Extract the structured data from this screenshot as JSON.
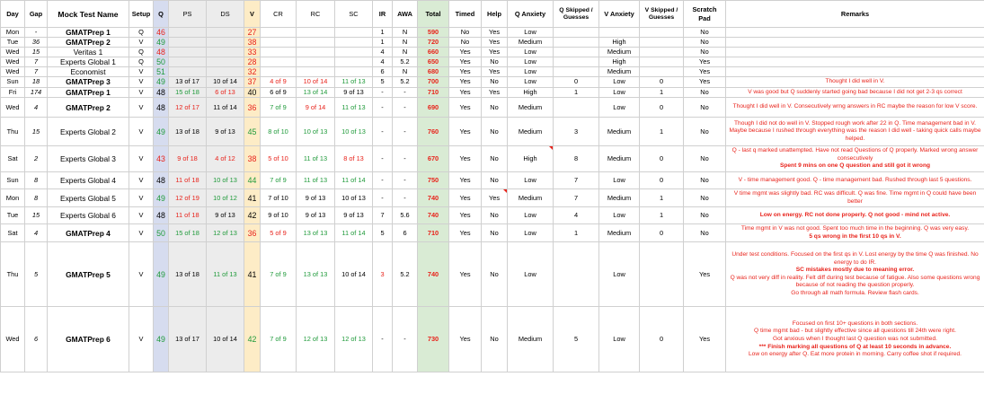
{
  "headers": {
    "day": "Day",
    "gap": "Gap",
    "name": "Mock Test Name",
    "setup": "Setup",
    "q": "Q",
    "ps": "PS",
    "ds": "DS",
    "v": "V",
    "cr": "CR",
    "rc": "RC",
    "sc": "SC",
    "ir": "IR",
    "awa": "AWA",
    "total": "Total",
    "timed": "Timed",
    "help": "Help",
    "q_anxiety": "Q Anxiety",
    "q_skipped": "Q Skipped / Guesses",
    "v_anxiety": "V Anxiety",
    "v_skipped": "V Skipped / Guesses",
    "scratch": "Scratch Pad",
    "remarks": "Remarks"
  },
  "colors": {
    "red": "#e8231b",
    "green": "#1f9a3a",
    "q_band": "#d6dcef",
    "v_band": "#fdecc6",
    "total_band": "#d9ebd4"
  },
  "rows": [
    {
      "day": "Mon",
      "gap": "-",
      "name": "GMATPrep 1",
      "name_bold": true,
      "setup": "Q",
      "q": "46",
      "q_c": "red",
      "ps": "",
      "ps_c": "blk",
      "ds": "",
      "ds_c": "blk",
      "v": "27",
      "v_c": "red",
      "cr": "",
      "cr_c": "blk",
      "rc": "",
      "rc_c": "blk",
      "sc": "",
      "sc_c": "blk",
      "ir": "1",
      "ir_c": "blk",
      "awa": "N",
      "total": "590",
      "timed": "No",
      "help": "Yes",
      "qanx": "Low",
      "qskip": "",
      "vanx": "",
      "vskip": "",
      "scratch": "No",
      "remarks": []
    },
    {
      "day": "Tue",
      "gap": "36",
      "name": "GMATPrep 2",
      "name_bold": true,
      "setup": "V",
      "q": "49",
      "q_c": "green",
      "ps": "",
      "ps_c": "blk",
      "ds": "",
      "ds_c": "blk",
      "v": "38",
      "v_c": "red",
      "cr": "",
      "cr_c": "blk",
      "rc": "",
      "rc_c": "blk",
      "sc": "",
      "sc_c": "blk",
      "ir": "1",
      "ir_c": "blk",
      "awa": "N",
      "total": "720",
      "timed": "No",
      "help": "Yes",
      "qanx": "Medium",
      "qskip": "",
      "vanx": "High",
      "vskip": "",
      "scratch": "No",
      "remarks": []
    },
    {
      "day": "Wed",
      "gap": "15",
      "name": "Veritas 1",
      "name_bold": false,
      "setup": "Q",
      "q": "48",
      "q_c": "red",
      "ps": "",
      "ps_c": "blk",
      "ds": "",
      "ds_c": "blk",
      "v": "33",
      "v_c": "red",
      "cr": "",
      "cr_c": "blk",
      "rc": "",
      "rc_c": "blk",
      "sc": "",
      "sc_c": "blk",
      "ir": "4",
      "ir_c": "blk",
      "awa": "N",
      "total": "660",
      "timed": "Yes",
      "help": "Yes",
      "qanx": "Low",
      "qskip": "",
      "vanx": "Medium",
      "vskip": "",
      "scratch": "No",
      "remarks": []
    },
    {
      "day": "Wed",
      "gap": "7",
      "name": "Experts Global 1",
      "name_bold": false,
      "setup": "Q",
      "q": "50",
      "q_c": "green",
      "ps": "",
      "ps_c": "blk",
      "ds": "",
      "ds_c": "blk",
      "v": "28",
      "v_c": "red",
      "cr": "",
      "cr_c": "blk",
      "rc": "",
      "rc_c": "blk",
      "sc": "",
      "sc_c": "blk",
      "ir": "4",
      "ir_c": "blk",
      "awa": "5.2",
      "total": "650",
      "timed": "Yes",
      "help": "No",
      "qanx": "Low",
      "qskip": "",
      "vanx": "High",
      "vskip": "",
      "scratch": "Yes",
      "remarks": []
    },
    {
      "day": "Wed",
      "gap": "7",
      "name": "Economist",
      "name_bold": false,
      "setup": "V",
      "q": "51",
      "q_c": "green",
      "ps": "",
      "ps_c": "blk",
      "ds": "",
      "ds_c": "blk",
      "v": "32",
      "v_c": "red",
      "cr": "",
      "cr_c": "blk",
      "rc": "",
      "rc_c": "blk",
      "sc": "",
      "sc_c": "blk",
      "ir": "6",
      "ir_c": "blk",
      "awa": "N",
      "total": "680",
      "timed": "Yes",
      "help": "Yes",
      "qanx": "Low",
      "qskip": "",
      "vanx": "Medium",
      "vskip": "",
      "scratch": "Yes",
      "remarks": []
    },
    {
      "day": "Sun",
      "gap": "18",
      "name": "GMATPrep 3",
      "name_bold": true,
      "setup": "V",
      "q": "49",
      "q_c": "green",
      "ps": "13 of 17",
      "ps_c": "blk",
      "ds": "10 of 14",
      "ds_c": "blk",
      "v": "37",
      "v_c": "red",
      "cr": "4 of 9",
      "cr_c": "red",
      "rc": "10 of 14",
      "rc_c": "red",
      "sc": "11 of 13",
      "sc_c": "green",
      "ir": "5",
      "ir_c": "blk",
      "awa": "5.2",
      "total": "700",
      "timed": "Yes",
      "help": "No",
      "qanx": "Low",
      "qskip": "0",
      "vanx": "Low",
      "vskip": "0",
      "scratch": "Yes",
      "remarks": [
        {
          "t": "Thought I did well in V.",
          "b": false
        }
      ]
    },
    {
      "day": "Fri",
      "gap": "174",
      "name": "GMATPrep 1",
      "name_bold": true,
      "setup": "V",
      "q": "48",
      "q_c": "blk",
      "ps": "15 of 18",
      "ps_c": "green",
      "ds": "6 of 13",
      "ds_c": "red",
      "v": "40",
      "v_c": "blk",
      "cr": "6 of 9",
      "cr_c": "blk",
      "rc": "13 of 14",
      "rc_c": "green",
      "sc": "9 of 13",
      "sc_c": "blk",
      "ir": "-",
      "ir_c": "blk",
      "awa": "-",
      "total": "710",
      "timed": "Yes",
      "help": "Yes",
      "qanx": "High",
      "qskip": "1",
      "vanx": "Low",
      "vskip": "1",
      "scratch": "No",
      "remarks": [
        {
          "t": "V was good but Q suddenly started going bad because I did not get 2-3 qs correct",
          "b": false
        }
      ]
    },
    {
      "day": "Wed",
      "gap": "4",
      "name": "GMATPrep 2",
      "name_bold": true,
      "setup": "V",
      "q": "48",
      "q_c": "blk",
      "ps": "12 of 17",
      "ps_c": "red",
      "ds": "11 of 14",
      "ds_c": "blk",
      "v": "36",
      "v_c": "red",
      "cr": "7 of 9",
      "cr_c": "green",
      "rc": "9 of 14",
      "rc_c": "red",
      "sc": "11 of 13",
      "sc_c": "green",
      "ir": "-",
      "ir_c": "blk",
      "awa": "-",
      "total": "690",
      "timed": "Yes",
      "help": "No",
      "qanx": "Medium",
      "qskip": "",
      "vanx": "Low",
      "vskip": "0",
      "scratch": "No",
      "remarks": [
        {
          "t": "Thought I did well in V. Consecutively wrng answers in RC maybe the reason for low V score.",
          "b": false
        }
      ]
    },
    {
      "day": "Thu",
      "gap": "15",
      "name": "Experts Global 2",
      "name_bold": false,
      "setup": "V",
      "q": "49",
      "q_c": "green",
      "ps": "13 of 18",
      "ps_c": "blk",
      "ds": "9 of 13",
      "ds_c": "blk",
      "v": "45",
      "v_c": "green",
      "cr": "8 of 10",
      "cr_c": "green",
      "rc": "10 of 13",
      "rc_c": "green",
      "sc": "10 of 13",
      "sc_c": "green",
      "ir": "-",
      "ir_c": "blk",
      "awa": "-",
      "total": "760",
      "timed": "Yes",
      "help": "No",
      "qanx": "Medium",
      "qskip": "3",
      "vanx": "Medium",
      "vskip": "1",
      "scratch": "No",
      "remarks": [
        {
          "t": "Though I did not do well in V. Stopped rough work after 22 in Q. Time management bad in V. Maybe because I rushed through everything was the reason I did well - taking quick calls maybe helped.",
          "b": false
        }
      ]
    },
    {
      "day": "Sat",
      "gap": "2",
      "name": "Experts Global 3",
      "name_bold": false,
      "setup": "V",
      "q": "43",
      "q_c": "red",
      "ps": "9 of 18",
      "ps_c": "red",
      "ds": "4 of 12",
      "ds_c": "red",
      "v": "38",
      "v_c": "red",
      "cr": "5 of 10",
      "cr_c": "red",
      "rc": "11 of 13",
      "rc_c": "green",
      "sc": "8 of 13",
      "sc_c": "red",
      "ir": "-",
      "ir_c": "blk",
      "awa": "-",
      "total": "670",
      "timed": "Yes",
      "help": "No",
      "qanx": "High",
      "qskip": "8",
      "vanx": "Medium",
      "vskip": "0",
      "scratch": "No",
      "remarks": [
        {
          "t": "Q - last q marked unattempted. Have not read Questions of Q properly. Marked wrong answer consecutively",
          "b": false
        },
        {
          "t": "Spent 9 mins on one Q question and still got it wrong",
          "b": true
        }
      ]
    },
    {
      "day": "Sun",
      "gap": "8",
      "name": "Experts Global 4",
      "name_bold": false,
      "setup": "V",
      "q": "48",
      "q_c": "blk",
      "ps": "11 of 18",
      "ps_c": "red",
      "ds": "10 of 13",
      "ds_c": "green",
      "v": "44",
      "v_c": "green",
      "cr": "7 of 9",
      "cr_c": "green",
      "rc": "11 of 13",
      "rc_c": "green",
      "sc": "11 of 14",
      "sc_c": "green",
      "ir": "-",
      "ir_c": "blk",
      "awa": "-",
      "total": "750",
      "timed": "Yes",
      "help": "No",
      "qanx": "Low",
      "qskip": "7",
      "vanx": "Low",
      "vskip": "0",
      "scratch": "No",
      "remarks": [
        {
          "t": "V - time management good. Q - time management bad. Rushed through last 5 questions.",
          "b": false
        }
      ]
    },
    {
      "day": "Mon",
      "gap": "8",
      "name": "Experts Global 5",
      "name_bold": false,
      "setup": "V",
      "q": "49",
      "q_c": "green",
      "ps": "12 of 19",
      "ps_c": "red",
      "ds": "10 of 12",
      "ds_c": "green",
      "v": "41",
      "v_c": "blk",
      "cr": "7 of 10",
      "cr_c": "blk",
      "rc": "9 of 13",
      "rc_c": "blk",
      "sc": "10 of 13",
      "sc_c": "blk",
      "ir": "-",
      "ir_c": "blk",
      "awa": "-",
      "total": "740",
      "timed": "Yes",
      "help": "Yes",
      "qanx": "Medium",
      "qskip": "7",
      "vanx": "Medium",
      "vskip": "1",
      "scratch": "No",
      "remarks": [
        {
          "t": "V time mgmt was slightly bad. RC was difficult. Q was fine. Time mgmt in Q could have been better",
          "b": false
        }
      ]
    },
    {
      "day": "Tue",
      "gap": "15",
      "name": "Experts Global 6",
      "name_bold": false,
      "setup": "V",
      "q": "48",
      "q_c": "blk",
      "ps": "11 of 18",
      "ps_c": "red",
      "ds": "9 of 13",
      "ds_c": "blk",
      "v": "42",
      "v_c": "blk",
      "cr": "9 of 10",
      "cr_c": "blk",
      "rc": "9 of 13",
      "rc_c": "blk",
      "sc": "9 of 13",
      "sc_c": "blk",
      "ir": "7",
      "ir_c": "blk",
      "awa": "5.6",
      "total": "740",
      "timed": "Yes",
      "help": "No",
      "qanx": "Low",
      "qskip": "4",
      "vanx": "Low",
      "vskip": "1",
      "scratch": "No",
      "remarks": [
        {
          "t": "Low on energy. RC not done properly. Q not good - mind not active.",
          "b": true
        }
      ]
    },
    {
      "day": "Sat",
      "gap": "4",
      "name": "GMATPrep 4",
      "name_bold": true,
      "setup": "V",
      "q": "50",
      "q_c": "green",
      "ps": "15 of 18",
      "ps_c": "green",
      "ds": "12 of 13",
      "ds_c": "green",
      "v": "36",
      "v_c": "red",
      "cr": "5 of 9",
      "cr_c": "red",
      "rc": "13 of 13",
      "rc_c": "green",
      "sc": "11 of 14",
      "sc_c": "green",
      "ir": "5",
      "ir_c": "blk",
      "awa": "6",
      "total": "710",
      "timed": "Yes",
      "help": "No",
      "qanx": "Low",
      "qskip": "1",
      "vanx": "Medium",
      "vskip": "0",
      "scratch": "No",
      "remarks": [
        {
          "t": "Time mgmt in V was not good. Spent too much time in the beginning. Q was very easy.",
          "b": false
        },
        {
          "t": "5 qs wrong in the first 10 qs in V.",
          "b": true
        }
      ]
    },
    {
      "day": "Thu",
      "gap": "5",
      "name": "GMATPrep 5",
      "name_bold": true,
      "setup": "V",
      "q": "49",
      "q_c": "green",
      "ps": "13 of 18",
      "ps_c": "blk",
      "ds": "11 of 13",
      "ds_c": "green",
      "v": "41",
      "v_c": "blk",
      "cr": "7 of 9",
      "cr_c": "green",
      "rc": "13 of 13",
      "rc_c": "green",
      "sc": "10 of 14",
      "sc_c": "blk",
      "ir": "3",
      "ir_c": "red",
      "awa": "5.2",
      "total": "740",
      "timed": "Yes",
      "help": "No",
      "qanx": "Low",
      "qskip": "",
      "vanx": "Low",
      "vskip": "",
      "scratch": "Yes",
      "remarks": [
        {
          "t": "Under test conditions. Focused on the first qs in V. Lost energy by the time Q was finished. No energy to do IR.",
          "b": false
        },
        {
          "t": "SC mistakes mostly due to meaning error.",
          "b": true
        },
        {
          "t": "Q was not very diff in reality. Felt diff during test because of fatigue. Also some questions wrong because of not reading the question properly.",
          "b": false
        },
        {
          "t": "Go through all math formula. Review flash cards.",
          "b": false
        }
      ]
    },
    {
      "day": "Wed",
      "gap": "6",
      "name": "GMATPrep 6",
      "name_bold": true,
      "setup": "V",
      "q": "49",
      "q_c": "green",
      "ps": "13 of 17",
      "ps_c": "blk",
      "ds": "10 of 14",
      "ds_c": "blk",
      "v": "42",
      "v_c": "green",
      "cr": "7 of 9",
      "cr_c": "green",
      "rc": "12 of 13",
      "rc_c": "green",
      "sc": "12 of 13",
      "sc_c": "green",
      "ir": "-",
      "ir_c": "blk",
      "awa": "-",
      "total": "730",
      "timed": "Yes",
      "help": "No",
      "qanx": "Medium",
      "qskip": "5",
      "vanx": "Low",
      "vskip": "0",
      "scratch": "Yes",
      "remarks": [
        {
          "t": "Focused on first 10+ questions in both sections.",
          "b": false
        },
        {
          "t": "Q time mgmt bad - but slightly effective since all questions till 24th were right.",
          "b": false
        },
        {
          "t": "Got anxious when I thought last Q question was not submitted.",
          "b": false
        },
        {
          "t": "*** Finish marking all questions of Q at least 10 seconds in advance.",
          "b": true
        },
        {
          "t": "Low on energy after Q. Eat more protein in morning. Carry coffee shot if required.",
          "b": false
        }
      ]
    }
  ]
}
